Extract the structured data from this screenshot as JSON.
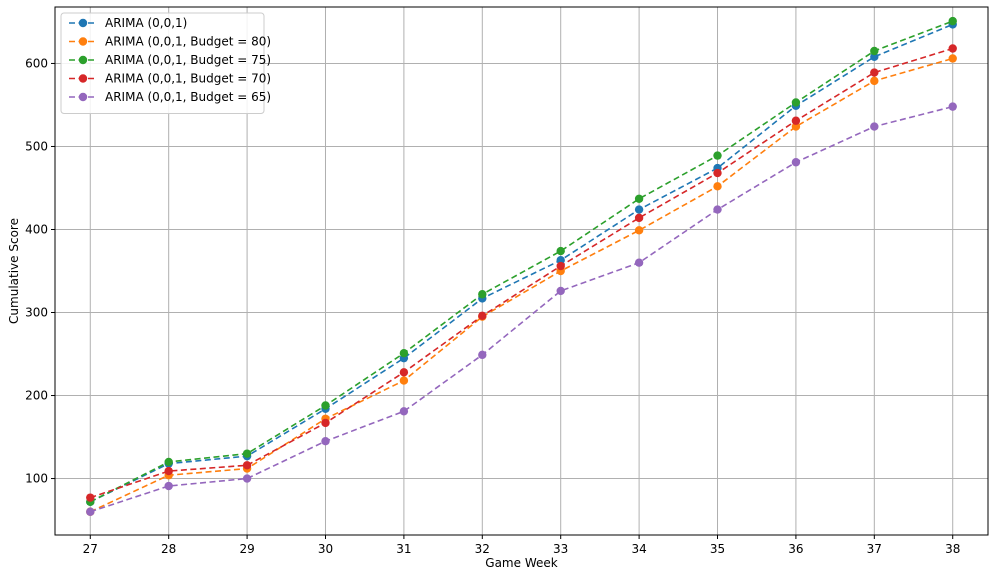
{
  "chart_data": {
    "type": "line",
    "title": "",
    "xlabel": "Game Week",
    "ylabel": "Cumulative Score",
    "x": [
      27,
      28,
      29,
      30,
      31,
      32,
      33,
      34,
      35,
      36,
      37,
      38
    ],
    "xlim": [
      26.55,
      38.45
    ],
    "ylim": [
      32,
      668
    ],
    "yticks": [
      100,
      200,
      300,
      400,
      500,
      600
    ],
    "grid": true,
    "legend_position": "top-left",
    "line_style": "dashed",
    "marker": "circle",
    "series": [
      {
        "name": "ARIMA (0,0,1)",
        "color": "#1f77b4",
        "values": [
          72,
          118,
          127,
          184,
          245,
          317,
          363,
          424,
          474,
          549,
          608,
          647
        ]
      },
      {
        "name": "ARIMA (0,0,1, Budget = 80)",
        "color": "#ff7f0e",
        "values": [
          60,
          104,
          112,
          172,
          218,
          295,
          350,
          399,
          452,
          524,
          579,
          606
        ]
      },
      {
        "name": "ARIMA (0,0,1, Budget = 75)",
        "color": "#2ca02c",
        "values": [
          72,
          120,
          130,
          188,
          251,
          322,
          374,
          437,
          489,
          553,
          615,
          651
        ]
      },
      {
        "name": "ARIMA (0,0,1, Budget = 70)",
        "color": "#d62728",
        "values": [
          77,
          109,
          116,
          167,
          228,
          296,
          356,
          414,
          468,
          531,
          589,
          618
        ]
      },
      {
        "name": "ARIMA (0,0,1, Budget = 65)",
        "color": "#9467bd",
        "values": [
          60,
          91,
          100,
          145,
          181,
          249,
          326,
          360,
          424,
          481,
          524,
          548
        ]
      }
    ]
  }
}
